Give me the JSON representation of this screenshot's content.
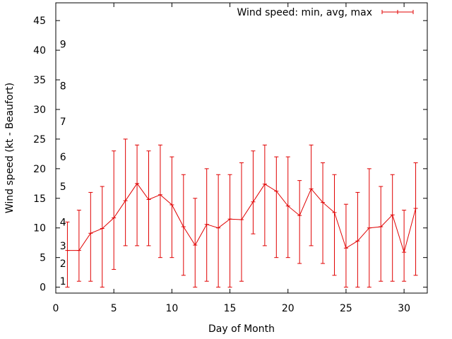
{
  "chart_data": {
    "type": "line",
    "title": "",
    "xlabel": "Day of Month",
    "ylabel": "Wind speed (kt - Beaufort)",
    "xlim": [
      0,
      32
    ],
    "ylim": [
      -1,
      48
    ],
    "x_ticks": [
      0,
      5,
      10,
      15,
      20,
      25,
      30
    ],
    "y_ticks": [
      0,
      5,
      10,
      15,
      20,
      25,
      30,
      35,
      40,
      45
    ],
    "beaufort_labels": [
      {
        "label": "1",
        "y": 1
      },
      {
        "label": "2",
        "y": 4
      },
      {
        "label": "3",
        "y": 7
      },
      {
        "label": "4",
        "y": 11
      },
      {
        "label": "5",
        "y": 17
      },
      {
        "label": "6",
        "y": 22
      },
      {
        "label": "7",
        "y": 28
      },
      {
        "label": "8",
        "y": 34
      },
      {
        "label": "9",
        "y": 41
      }
    ],
    "legend": {
      "label": "Wind speed: min, avg, max",
      "placement": "top-right"
    },
    "series": [
      {
        "name": "Wind speed: min, avg, max",
        "color": "#e00000",
        "x": [
          1,
          2,
          3,
          4,
          5,
          6,
          7,
          8,
          9,
          10,
          11,
          12,
          13,
          14,
          15,
          16,
          17,
          18,
          19,
          20,
          21,
          22,
          23,
          24,
          25,
          26,
          27,
          28,
          29,
          30,
          31
        ],
        "avg": [
          6.2,
          6.2,
          9.1,
          9.9,
          11.7,
          14.6,
          17.5,
          14.8,
          15.6,
          13.9,
          10.2,
          7.1,
          10.6,
          10,
          11.5,
          11.4,
          14.4,
          17.4,
          16.2,
          13.7,
          12.1,
          16.6,
          14.3,
          12.6,
          6.6,
          7.8,
          10,
          10.2,
          12.2,
          5.9,
          13.3
        ],
        "min": [
          0,
          1,
          1,
          0,
          3,
          7,
          7,
          7,
          5,
          5,
          2,
          0,
          1,
          0,
          0,
          1,
          9,
          7,
          5,
          5,
          4,
          7,
          4,
          2,
          0,
          0,
          0,
          1,
          1,
          1,
          2
        ],
        "max": [
          11,
          13,
          16,
          17,
          23,
          25,
          24,
          23,
          24,
          22,
          19,
          15,
          20,
          19,
          19,
          21,
          23,
          24,
          22,
          22,
          18,
          24,
          21,
          19,
          14,
          16,
          20,
          17,
          19,
          13,
          21
        ]
      }
    ]
  }
}
